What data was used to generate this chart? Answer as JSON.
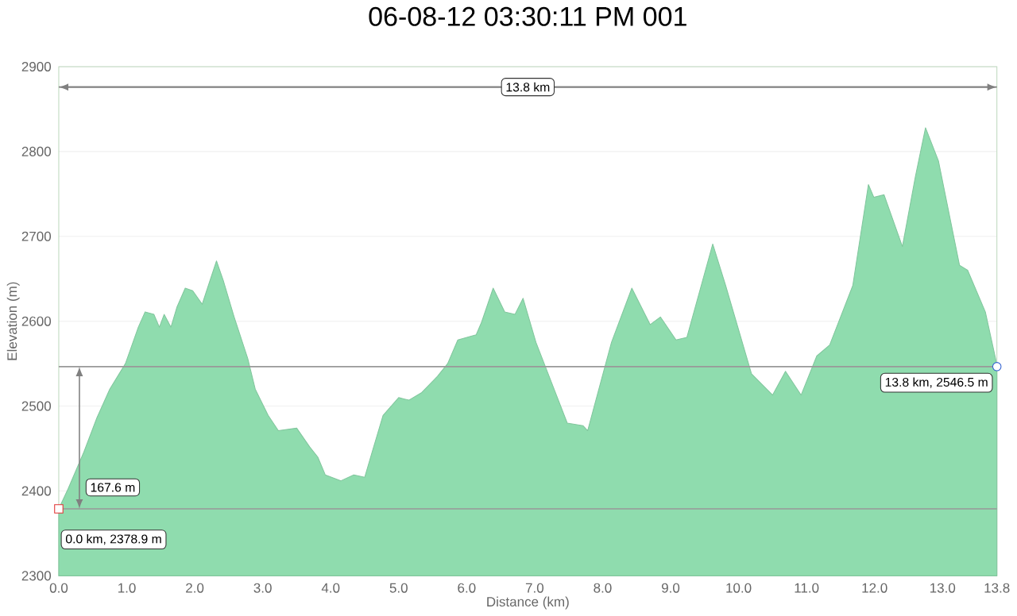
{
  "chart_data": {
    "type": "area",
    "title": "06-08-12 03:30:11 PM 001",
    "xlabel": "Distance   (km)",
    "ylabel": "Elevation  (m)",
    "xlim": [
      0,
      13.8
    ],
    "ylim": [
      2300,
      2900
    ],
    "xticks": [
      {
        "value": 0,
        "label": "0.0"
      },
      {
        "value": 1,
        "label": "1.0"
      },
      {
        "value": 2,
        "label": "2.0"
      },
      {
        "value": 3,
        "label": "3.0"
      },
      {
        "value": 4,
        "label": "4.0"
      },
      {
        "value": 5,
        "label": "5.0"
      },
      {
        "value": 6,
        "label": "6.0"
      },
      {
        "value": 7,
        "label": "7.0"
      },
      {
        "value": 8,
        "label": "8.0"
      },
      {
        "value": 9,
        "label": "9.0"
      },
      {
        "value": 10,
        "label": "10.0"
      },
      {
        "value": 11,
        "label": "11.0"
      },
      {
        "value": 12,
        "label": "12.0"
      },
      {
        "value": 13,
        "label": "13.0"
      },
      13.8
    ],
    "yticks": [
      2300,
      2400,
      2500,
      2600,
      2700,
      2800,
      2900
    ],
    "grid": "y",
    "series": [
      {
        "color": "#8fdcae",
        "x": [
          0,
          0.14,
          0.37,
          0.56,
          0.75,
          0.98,
          1.17,
          1.27,
          1.4,
          1.48,
          1.55,
          1.65,
          1.74,
          1.86,
          1.97,
          2.11,
          2.2,
          2.32,
          2.42,
          2.58,
          2.78,
          2.89,
          3.08,
          3.23,
          3.5,
          3.69,
          3.81,
          3.92,
          4.15,
          4.34,
          4.5,
          4.61,
          4.77,
          5.0,
          5.15,
          5.34,
          5.57,
          5.72,
          5.87,
          6.14,
          6.22,
          6.39,
          6.56,
          6.71,
          6.83,
          7.02,
          7.32,
          7.48,
          7.71,
          7.78,
          8.13,
          8.43,
          8.7,
          8.85,
          9.08,
          9.24,
          9.62,
          9.81,
          10.19,
          10.5,
          10.69,
          10.92,
          11.15,
          11.34,
          11.68,
          11.91,
          11.99,
          12.14,
          12.41,
          12.6,
          12.75,
          12.94,
          13.25,
          13.37,
          13.63,
          13.78,
          13.8
        ],
        "values": [
          2378.9,
          2403,
          2446,
          2486,
          2520,
          2550,
          2593,
          2611,
          2608,
          2593,
          2608,
          2593,
          2617,
          2639,
          2636,
          2620,
          2642,
          2671,
          2648,
          2605,
          2556,
          2520,
          2489,
          2471,
          2474,
          2452,
          2440,
          2419,
          2412,
          2419,
          2416,
          2446,
          2489,
          2510,
          2507,
          2516,
          2535,
          2550,
          2578,
          2584,
          2599,
          2639,
          2611,
          2608,
          2627,
          2575,
          2513,
          2480,
          2477,
          2471,
          2575,
          2639,
          2596,
          2605,
          2578,
          2581,
          2691,
          2642,
          2538,
          2513,
          2541,
          2513,
          2559,
          2572,
          2642,
          2761,
          2746,
          2749,
          2688,
          2770,
          2828,
          2789,
          2666,
          2660,
          2611,
          2556,
          2546.5
        ]
      },
      {
        "type": "scatter",
        "color": "#e03030",
        "marker": "square",
        "x": [
          0
        ],
        "values": [
          2378.9
        ]
      },
      {
        "type": "scatter",
        "color": "#3060d0",
        "marker": "circle",
        "x": [
          13.8
        ],
        "values": [
          2546.5
        ]
      }
    ],
    "ref_lines": [
      {
        "axis": "y",
        "value": 2378.9,
        "color": "#999999"
      },
      {
        "axis": "y",
        "value": 2546.5,
        "color": "#999999"
      },
      {
        "axis": "y",
        "value": 2876,
        "color": "#808080",
        "label": "13.8 km"
      }
    ],
    "annotations": [
      {
        "text": "0.0 km, 2378.9 m",
        "x": 0,
        "y": 2378.9
      },
      {
        "text": "13.8 km, 2546.5 m",
        "x": 13.8,
        "y": 2546.5
      },
      "167.6 m"
    ]
  }
}
